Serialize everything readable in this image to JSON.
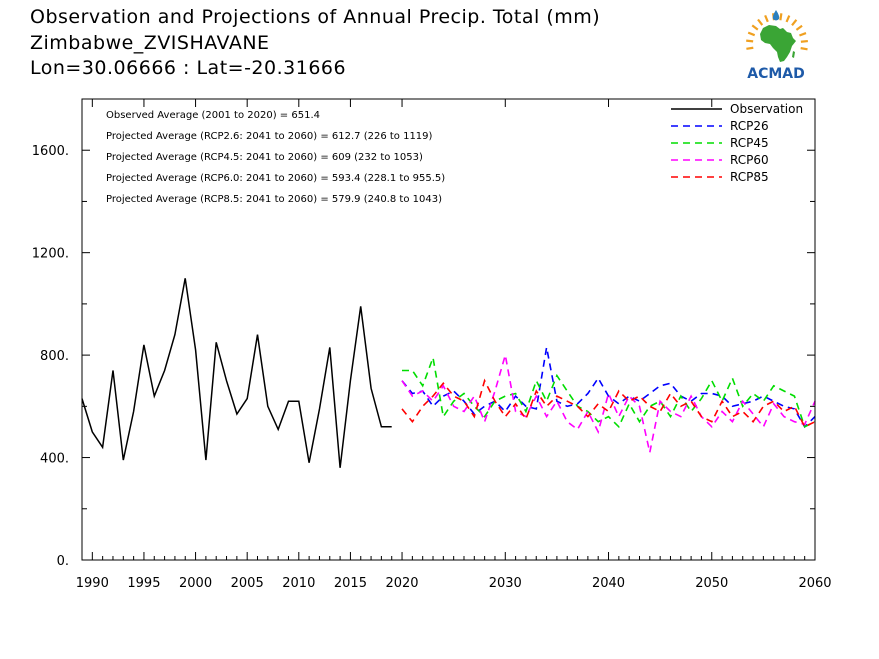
{
  "header": {
    "title_line1": "Observation and Projections of Annual Precip. Total (mm)",
    "title_line2": "Zimbabwe_ZVISHAVANE",
    "title_line3": "Lon=30.06666 : Lat=-20.31666"
  },
  "logo": {
    "text": "ACMAD",
    "icon": "acmad-africa-logo",
    "colors": {
      "africa": "#3aa535",
      "text": "#1e5aa8",
      "rays": "#f0a020",
      "drop": "#2a7fc0"
    }
  },
  "chart_data": {
    "type": "line",
    "title": "Observation and Projections of Annual Precip. Total (mm)",
    "xlim": [
      1989,
      2060
    ],
    "ylim": [
      0,
      1800
    ],
    "x_ticks": [
      {
        "value": 1990,
        "label": "1990"
      },
      {
        "value": 1995,
        "label": "1995"
      },
      {
        "value": 2000,
        "label": "2000"
      },
      {
        "value": 2005,
        "label": "2005"
      },
      {
        "value": 2010,
        "label": "2010"
      },
      {
        "value": 2015,
        "label": "2015"
      },
      {
        "value": 2020,
        "label": "2020"
      },
      {
        "value": 2030,
        "label": "2030"
      },
      {
        "value": 2040,
        "label": "2040"
      },
      {
        "value": 2050,
        "label": "2050"
      },
      {
        "value": 2060,
        "label": "2060"
      }
    ],
    "y_ticks": [
      {
        "value": 0,
        "label": "0."
      },
      {
        "value": 400,
        "label": "400."
      },
      {
        "value": 800,
        "label": "800."
      },
      {
        "value": 1200,
        "label": "1200."
      },
      {
        "value": 1600,
        "label": "1600."
      }
    ],
    "grid": false,
    "legend_position": "top-right",
    "annotations": [
      "Observed Average (2001 to 2020) = 651.4",
      "Projected Average (RCP2.6: 2041 to 2060) = 612.7 (226 to 1119)",
      "Projected Average (RCP4.5: 2041 to 2060) = 609 (232 to 1053)",
      "Projected Average (RCP6.0: 2041 to 2060) = 593.4 (228.1 to 955.5)",
      "Projected Average (RCP8.5: 2041 to 2060) = 579.9 (240.8 to 1043)"
    ],
    "series": [
      {
        "name": "Observation",
        "color": "#000000",
        "dashed": false,
        "x": [
          1989,
          1990,
          1991,
          1992,
          1993,
          1994,
          1995,
          1996,
          1997,
          1998,
          1999,
          2000,
          2001,
          2002,
          2003,
          2004,
          2005,
          2006,
          2007,
          2008,
          2009,
          2010,
          2011,
          2012,
          2013,
          2014,
          2015,
          2016,
          2017,
          2018,
          2019
        ],
        "y": [
          630,
          500,
          440,
          740,
          390,
          580,
          840,
          640,
          740,
          880,
          1100,
          820,
          390,
          850,
          700,
          570,
          630,
          880,
          600,
          510,
          620,
          620,
          380,
          590,
          830,
          360,
          700,
          990,
          670,
          520,
          520
        ]
      },
      {
        "name": "RCP26",
        "color": "#0000ff",
        "dashed": true,
        "x": [
          2020,
          2021,
          2022,
          2023,
          2024,
          2025,
          2026,
          2027,
          2028,
          2029,
          2030,
          2031,
          2032,
          2033,
          2034,
          2035,
          2036,
          2037,
          2038,
          2039,
          2040,
          2041,
          2042,
          2043,
          2044,
          2045,
          2046,
          2047,
          2048,
          2049,
          2050,
          2051,
          2052,
          2053,
          2054,
          2055,
          2056,
          2057,
          2058,
          2059,
          2060
        ],
        "y": [
          700,
          650,
          660,
          600,
          640,
          660,
          620,
          570,
          600,
          620,
          580,
          640,
          600,
          590,
          830,
          620,
          600,
          610,
          650,
          710,
          640,
          610,
          640,
          620,
          650,
          680,
          690,
          640,
          620,
          650,
          650,
          640,
          600,
          610,
          620,
          640,
          620,
          600,
          590,
          520,
          560
        ]
      },
      {
        "name": "RCP45",
        "color": "#00dd00",
        "dashed": true,
        "x": [
          2020,
          2021,
          2022,
          2023,
          2024,
          2025,
          2026,
          2027,
          2028,
          2029,
          2030,
          2031,
          2032,
          2033,
          2034,
          2035,
          2036,
          2037,
          2038,
          2039,
          2040,
          2041,
          2042,
          2043,
          2044,
          2045,
          2046,
          2047,
          2048,
          2049,
          2050,
          2051,
          2052,
          2053,
          2054,
          2055,
          2056,
          2057,
          2058,
          2059,
          2060
        ],
        "y": [
          740,
          740,
          680,
          790,
          560,
          620,
          650,
          600,
          560,
          620,
          640,
          650,
          580,
          700,
          620,
          720,
          660,
          600,
          580,
          540,
          560,
          520,
          610,
          540,
          600,
          620,
          560,
          640,
          580,
          630,
          700,
          620,
          710,
          600,
          650,
          620,
          680,
          660,
          640,
          520,
          540
        ]
      },
      {
        "name": "RCP60",
        "color": "#ff00ff",
        "dashed": true,
        "x": [
          2020,
          2021,
          2022,
          2023,
          2024,
          2025,
          2026,
          2027,
          2028,
          2029,
          2030,
          2031,
          2032,
          2033,
          2034,
          2035,
          2036,
          2037,
          2038,
          2039,
          2040,
          2041,
          2042,
          2043,
          2044,
          2045,
          2046,
          2047,
          2048,
          2049,
          2050,
          2051,
          2052,
          2053,
          2054,
          2055,
          2056,
          2057,
          2058,
          2059,
          2060
        ],
        "y": [
          700,
          640,
          660,
          620,
          680,
          600,
          580,
          640,
          540,
          660,
          800,
          580,
          560,
          640,
          560,
          620,
          540,
          510,
          580,
          500,
          650,
          560,
          640,
          600,
          420,
          620,
          580,
          560,
          640,
          560,
          520,
          580,
          540,
          620,
          570,
          520,
          610,
          560,
          540,
          530,
          620
        ]
      },
      {
        "name": "RCP85",
        "color": "#ff0000",
        "dashed": true,
        "x": [
          2020,
          2021,
          2022,
          2023,
          2024,
          2025,
          2026,
          2027,
          2028,
          2029,
          2030,
          2031,
          2032,
          2033,
          2034,
          2035,
          2036,
          2037,
          2038,
          2039,
          2040,
          2041,
          2042,
          2043,
          2044,
          2045,
          2046,
          2047,
          2048,
          2049,
          2050,
          2051,
          2052,
          2053,
          2054,
          2055,
          2056,
          2057,
          2058,
          2059,
          2060
        ],
        "y": [
          590,
          540,
          600,
          640,
          690,
          640,
          620,
          560,
          700,
          620,
          560,
          610,
          550,
          660,
          600,
          640,
          620,
          600,
          560,
          610,
          580,
          660,
          620,
          640,
          600,
          580,
          650,
          600,
          620,
          560,
          540,
          620,
          560,
          580,
          540,
          600,
          620,
          580,
          600,
          520,
          540
        ]
      }
    ]
  }
}
